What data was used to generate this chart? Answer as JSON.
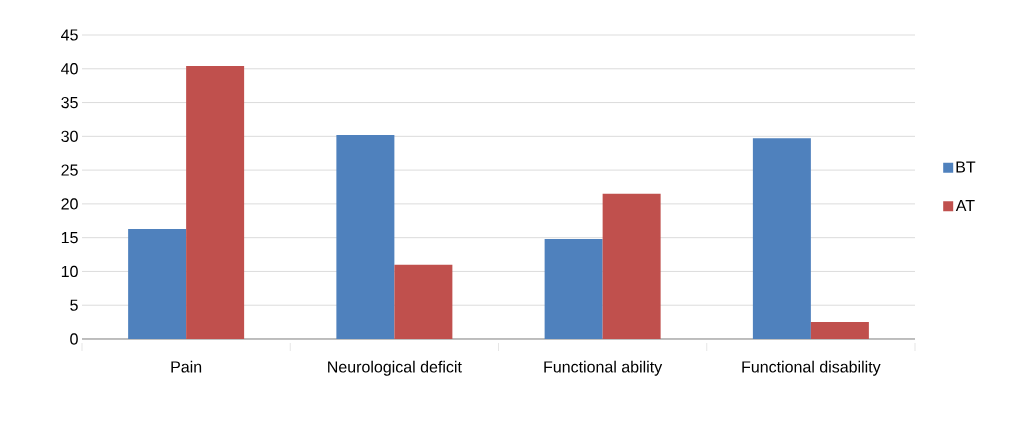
{
  "chart_data": {
    "type": "bar",
    "categories": [
      "Pain",
      "Neurological deficit",
      "Functional ability",
      "Functional disability"
    ],
    "series": [
      {
        "name": "BT",
        "color": "#4f81bd",
        "values": [
          16.3,
          30.2,
          14.8,
          29.7
        ]
      },
      {
        "name": "AT",
        "color": "#c0504d",
        "values": [
          40.4,
          11.0,
          21.5,
          2.5
        ]
      }
    ],
    "ylim": [
      0,
      45
    ],
    "yticks": [
      0,
      5,
      10,
      15,
      20,
      25,
      30,
      35,
      40,
      45
    ],
    "grid": "y",
    "legend": "right"
  }
}
